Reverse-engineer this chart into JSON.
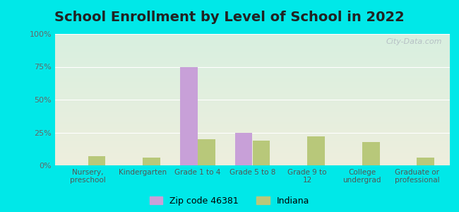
{
  "title": "School Enrollment by Level of School in 2022",
  "categories": [
    "Nursery,\npreschool",
    "Kindergarten",
    "Grade 1 to 4",
    "Grade 5 to 8",
    "Grade 9 to\n12",
    "College\nundergrad",
    "Graduate or\nprofessional"
  ],
  "zip_values": [
    0.0,
    0.0,
    75.0,
    25.0,
    0.0,
    0.0,
    0.0
  ],
  "indiana_values": [
    7.0,
    6.0,
    20.0,
    19.0,
    22.0,
    18.0,
    6.0
  ],
  "zip_color": "#c8a0d8",
  "indiana_color": "#b8c87a",
  "background_outer": "#00e8e8",
  "background_inner_topleft": "#d8f0e0",
  "background_inner_bottomright": "#eeeedd",
  "ylim": [
    0,
    100
  ],
  "yticks": [
    0,
    25,
    50,
    75,
    100
  ],
  "ytick_labels": [
    "0%",
    "25%",
    "50%",
    "75%",
    "100%"
  ],
  "title_fontsize": 14,
  "legend_zip_label": "Zip code 46381",
  "legend_indiana_label": "Indiana",
  "watermark": "City-Data.com",
  "bar_width": 0.32
}
